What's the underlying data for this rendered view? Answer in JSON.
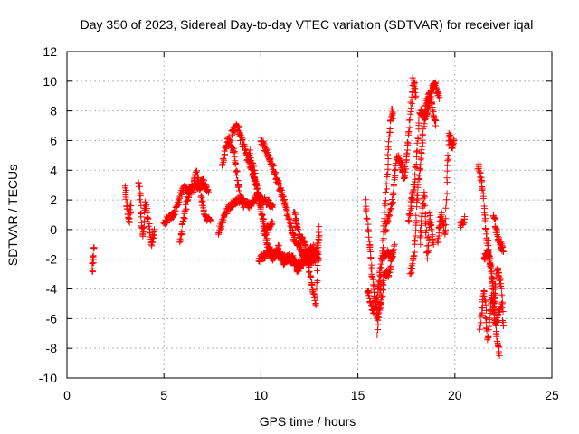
{
  "chart_data": {
    "type": "scatter",
    "title": "Day 350 of 2023, Sidereal Day-to-day VTEC variation (SDTVAR) for receiver iqal",
    "xlabel": "GPS time / hours",
    "ylabel": "SDTVAR / TECUs",
    "xlim": [
      0,
      25
    ],
    "ylim": [
      -10,
      12
    ],
    "xticks": [
      "0",
      "5",
      "10",
      "15",
      "20",
      "25"
    ],
    "yticks": [
      "-10",
      "-8",
      "-6",
      "-4",
      "-2",
      "0",
      "2",
      "4",
      "6",
      "8",
      "10",
      "12"
    ],
    "grid": true,
    "marker": "+",
    "series_color": "#ff0000",
    "series": [
      {
        "name": "SDTVAR",
        "tracks": [
          [
            [
              1.3,
              -3.0
            ],
            [
              1.35,
              -2.0
            ],
            [
              1.4,
              -1.2
            ]
          ],
          [
            [
              3.0,
              3.0
            ],
            [
              3.1,
              1.5
            ],
            [
              3.2,
              0.6
            ],
            [
              3.3,
              1.8
            ]
          ],
          [
            [
              3.7,
              3.3
            ],
            [
              3.8,
              1.5
            ],
            [
              3.9,
              -0.5
            ],
            [
              4.05,
              1.8
            ],
            [
              4.2,
              0.5
            ],
            [
              4.35,
              -1.0
            ],
            [
              4.5,
              0.0
            ]
          ],
          [
            [
              5.0,
              0.5
            ],
            [
              5.5,
              1.0
            ],
            [
              6.0,
              2.8
            ],
            [
              6.5,
              2.6
            ],
            [
              7.0,
              3.3
            ],
            [
              7.3,
              2.5
            ]
          ],
          [
            [
              5.8,
              -1.0
            ],
            [
              6.2,
              2.0
            ],
            [
              6.7,
              3.9
            ],
            [
              7.1,
              1.0
            ],
            [
              7.4,
              0.6
            ]
          ],
          [
            [
              8.0,
              4.3
            ],
            [
              8.3,
              6.2
            ],
            [
              8.6,
              5.3
            ],
            [
              8.9,
              2.4
            ],
            [
              9.1,
              1.5
            ]
          ],
          [
            [
              8.5,
              6.5
            ],
            [
              8.8,
              7.0
            ],
            [
              9.0,
              6.0
            ],
            [
              9.5,
              4.2
            ],
            [
              9.8,
              2.8
            ],
            [
              10.2,
              -0.2
            ],
            [
              10.6,
              0.5
            ]
          ],
          [
            [
              7.8,
              -0.2
            ],
            [
              8.2,
              1.2
            ],
            [
              8.6,
              1.8
            ],
            [
              9.0,
              2.0
            ],
            [
              9.4,
              1.6
            ],
            [
              9.8,
              2.2
            ],
            [
              10.2,
              2.0
            ],
            [
              10.6,
              1.5
            ]
          ],
          [
            [
              9.4,
              5.3
            ],
            [
              9.7,
              3.5
            ],
            [
              10.0,
              1.5
            ],
            [
              10.3,
              -0.8
            ],
            [
              10.6,
              -2.0
            ],
            [
              10.9,
              -1.2
            ],
            [
              11.2,
              -2.2
            ],
            [
              11.6,
              -1.8
            ],
            [
              11.9,
              -2.8
            ],
            [
              12.2,
              -1.5
            ],
            [
              12.5,
              -2.4
            ],
            [
              12.8,
              -1.5
            ],
            [
              13.0,
              -2.0
            ]
          ],
          [
            [
              10.0,
              6.0
            ],
            [
              10.4,
              5.0
            ],
            [
              10.8,
              3.5
            ],
            [
              11.3,
              1.5
            ],
            [
              11.7,
              -0.5
            ],
            [
              12.2,
              -1.7
            ],
            [
              12.7,
              -1.2
            ],
            [
              13.0,
              -2.0
            ]
          ],
          [
            [
              9.9,
              -2.0
            ],
            [
              10.5,
              -1.5
            ],
            [
              11.0,
              -1.8
            ],
            [
              11.5,
              -2.0
            ],
            [
              12.0,
              -2.5
            ],
            [
              12.4,
              -1.8
            ],
            [
              12.8,
              -2.2
            ],
            [
              13.0,
              -0.5
            ]
          ],
          [
            [
              11.7,
              1.2
            ],
            [
              12.0,
              -0.5
            ],
            [
              12.3,
              -1.0
            ],
            [
              12.6,
              -3.5
            ],
            [
              12.85,
              -5.0
            ],
            [
              13.0,
              0.2
            ]
          ],
          [
            [
              15.4,
              1.8
            ],
            [
              15.6,
              -1.0
            ],
            [
              15.8,
              -4.0
            ],
            [
              16.0,
              -6.0
            ],
            [
              16.2,
              -5.0
            ],
            [
              16.35,
              -3.0
            ],
            [
              16.6,
              -3.0
            ],
            [
              16.9,
              -1.0
            ]
          ],
          [
            [
              15.5,
              -4.0
            ],
            [
              15.8,
              -5.5
            ],
            [
              16.0,
              -4.5
            ],
            [
              16.2,
              -2.0
            ],
            [
              16.5,
              -1.5
            ],
            [
              16.8,
              -1.8
            ]
          ],
          [
            [
              16.0,
              -7.2
            ],
            [
              16.2,
              -3.0
            ],
            [
              16.45,
              2.5
            ],
            [
              16.6,
              6.0
            ],
            [
              16.75,
              8.0
            ],
            [
              16.85,
              7.5
            ]
          ],
          [
            [
              16.4,
              0.0
            ],
            [
              16.8,
              2.0
            ],
            [
              17.0,
              5.0
            ],
            [
              17.2,
              4.5
            ],
            [
              17.4,
              3.5
            ],
            [
              17.6,
              6.0
            ],
            [
              17.85,
              10.2
            ],
            [
              18.0,
              9.0
            ]
          ],
          [
            [
              17.7,
              -3.0
            ],
            [
              17.9,
              -1.5
            ],
            [
              18.05,
              2.0
            ],
            [
              18.3,
              5.5
            ],
            [
              18.5,
              8.5
            ],
            [
              18.8,
              9.5
            ],
            [
              19.0,
              9.8
            ],
            [
              19.2,
              8.8
            ]
          ],
          [
            [
              17.6,
              0.5
            ],
            [
              17.9,
              3.0
            ],
            [
              18.2,
              8.0
            ],
            [
              18.5,
              7.5
            ],
            [
              18.75,
              9.0
            ],
            [
              19.0,
              7.0
            ]
          ],
          [
            [
              18.2,
              -1.0
            ],
            [
              18.4,
              2.5
            ],
            [
              18.6,
              -2.0
            ],
            [
              18.7,
              1.0
            ],
            [
              18.9,
              -1.0
            ]
          ],
          [
            [
              19.1,
              -1.0
            ],
            [
              19.3,
              1.0
            ],
            [
              19.5,
              -0.5
            ],
            [
              19.6,
              3.5
            ],
            [
              19.7,
              6.5
            ],
            [
              19.85,
              5.5
            ],
            [
              19.95,
              6.0
            ]
          ],
          [
            [
              20.3,
              0.3
            ],
            [
              20.5,
              0.7
            ]
          ],
          [
            [
              21.2,
              4.3
            ],
            [
              21.4,
              3.0
            ],
            [
              21.6,
              0.0
            ],
            [
              21.8,
              -2.0
            ],
            [
              22.0,
              -4.0
            ],
            [
              22.15,
              -7.0
            ],
            [
              22.3,
              -8.5
            ]
          ],
          [
            [
              21.3,
              -6.5
            ],
            [
              21.5,
              -4.0
            ],
            [
              21.7,
              -7.5
            ],
            [
              21.9,
              -4.5
            ],
            [
              22.1,
              -6.5
            ],
            [
              22.4,
              -5.0
            ]
          ],
          [
            [
              21.5,
              -2.0
            ],
            [
              21.7,
              -1.5
            ],
            [
              21.9,
              -3.0
            ],
            [
              22.0,
              -5.0
            ],
            [
              22.2,
              -2.5
            ],
            [
              22.4,
              -4.0
            ],
            [
              22.5,
              -6.5
            ]
          ],
          [
            [
              22.0,
              1.0
            ],
            [
              22.2,
              -0.5
            ],
            [
              22.35,
              -1.0
            ],
            [
              22.5,
              -1.5
            ]
          ]
        ]
      }
    ]
  }
}
